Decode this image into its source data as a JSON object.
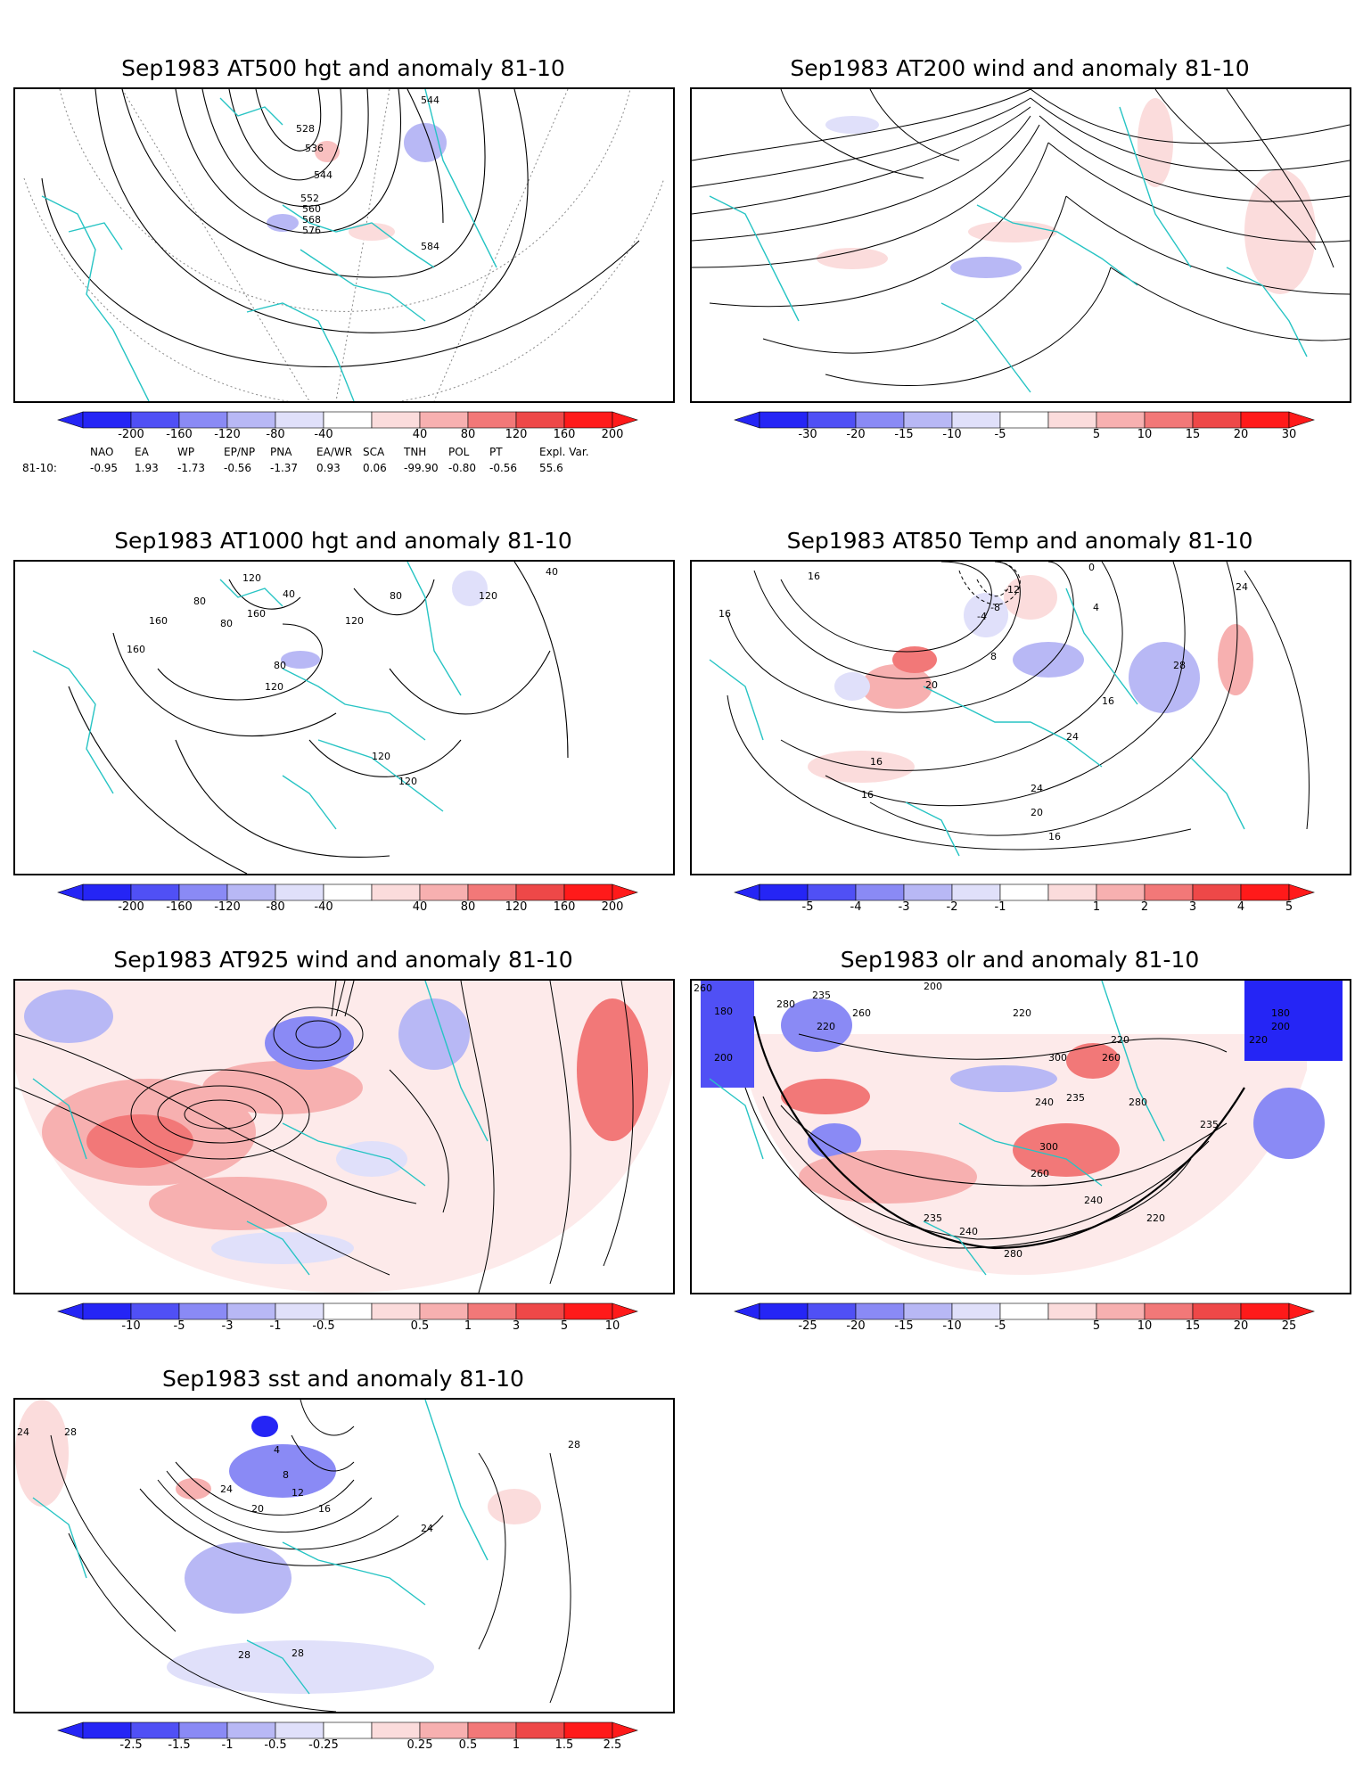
{
  "panels": [
    {
      "id": "p1",
      "title": "Sep1983 AT500 hgt and anomaly 81-10",
      "colorbar_ticks": [
        "-200",
        "-160",
        "-120",
        "-80",
        "-40",
        "40",
        "80",
        "120",
        "160",
        "200"
      ],
      "contour_labels": [
        "528",
        "536",
        "544",
        "552",
        "560",
        "568",
        "576",
        "584",
        "544"
      ]
    },
    {
      "id": "p2",
      "title": "Sep1983 AT200 wind and anomaly 81-10",
      "colorbar_ticks": [
        "-30",
        "-20",
        "-15",
        "-10",
        "-5",
        "5",
        "10",
        "15",
        "20",
        "30"
      ],
      "contour_labels": []
    },
    {
      "id": "p3",
      "title": "Sep1983 AT1000 hgt and anomaly 81-10",
      "colorbar_ticks": [
        "-200",
        "-160",
        "-120",
        "-80",
        "-40",
        "40",
        "80",
        "120",
        "160",
        "200"
      ],
      "contour_labels": [
        "120",
        "80",
        "160",
        "40",
        "80",
        "120",
        "160",
        "80",
        "120",
        "160",
        "120",
        "80",
        "120",
        "40",
        "120"
      ]
    },
    {
      "id": "p4",
      "title": "Sep1983 AT850 Temp and anomaly 81-10",
      "colorbar_ticks": [
        "-5",
        "-4",
        "-3",
        "-2",
        "-1",
        "1",
        "2",
        "3",
        "4",
        "5"
      ],
      "contour_labels": [
        "16",
        "16",
        "0",
        "-4",
        "-8",
        "-12",
        "4",
        "8",
        "20",
        "16",
        "24",
        "28",
        "16",
        "24",
        "20",
        "16",
        "16",
        "24"
      ]
    },
    {
      "id": "p5",
      "title": "Sep1983 AT925 wind and anomaly 81-10",
      "colorbar_ticks": [
        "-10",
        "-5",
        "-3",
        "-1",
        "-0.5",
        "0.5",
        "1",
        "3",
        "5",
        "10"
      ],
      "contour_labels": []
    },
    {
      "id": "p6",
      "title": "Sep1983 olr and anomaly 81-10",
      "colorbar_ticks": [
        "-25",
        "-20",
        "-15",
        "-10",
        "-5",
        "5",
        "10",
        "15",
        "20",
        "25"
      ],
      "contour_labels": [
        "260",
        "180",
        "200",
        "280",
        "235",
        "220",
        "260",
        "200",
        "220",
        "240",
        "300",
        "235",
        "260",
        "280",
        "220",
        "240",
        "235",
        "300",
        "260",
        "280",
        "220",
        "235",
        "240",
        "180",
        "200",
        "220"
      ]
    },
    {
      "id": "p7",
      "title": "Sep1983 sst and anomaly 81-10",
      "colorbar_ticks": [
        "-2.5",
        "-1.5",
        "-1",
        "-0.5",
        "-0.25",
        "0.25",
        "0.5",
        "1",
        "1.5",
        "2.5"
      ],
      "contour_labels": [
        "24",
        "28",
        "4",
        "8",
        "12",
        "16",
        "20",
        "24",
        "24",
        "28",
        "28",
        "28"
      ]
    }
  ],
  "indices": {
    "header": [
      "NAO",
      "EA",
      "WP",
      "EP/NP",
      "PNA",
      "EA/WR",
      "SCA",
      "TNH",
      "POL",
      "PT",
      "Expl. Var."
    ],
    "row_label": "81-10:",
    "values": [
      "-0.95",
      "1.93",
      "-1.73",
      "-0.56",
      "-1.37",
      "0.93",
      "0.06",
      "-99.90",
      "-0.80",
      "-0.56",
      "55.6"
    ]
  },
  "colors": {
    "coast": "#27c4c4",
    "scale": [
      "#2525f5",
      "#5050f5",
      "#8a8af5",
      "#b8b8f5",
      "#e0e0fa",
      "#ffffff",
      "#fbdcdc",
      "#f7b0b0",
      "#f27878",
      "#ee4848",
      "#ff1a1a"
    ]
  }
}
